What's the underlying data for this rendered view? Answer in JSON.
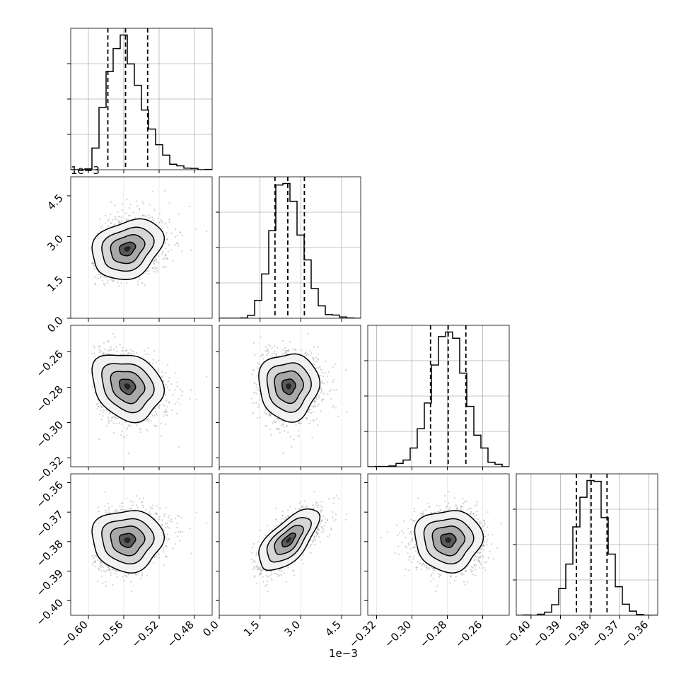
{
  "chart_data": {
    "type": "corner",
    "parameters": [
      {
        "range": [
          -0.62,
          -0.46
        ],
        "ticks": [
          "−0.60",
          "−0.56",
          "−0.52",
          "−0.48"
        ],
        "tick_values": [
          -0.6,
          -0.56,
          -0.52,
          -0.48
        ],
        "quantiles": [
          -0.578,
          -0.558,
          -0.533
        ],
        "mean": -0.556,
        "sd": 0.02,
        "skew": 0.5
      },
      {
        "range": [
          0.0,
          0.0052
        ],
        "ticks": [
          "0.0",
          "1.5",
          "3.0",
          "4.5"
        ],
        "tick_values": [
          0.0,
          0.0015,
          0.003,
          0.0045
        ],
        "offset_text": "1e−3",
        "quantiles": [
          0.00205,
          0.00252,
          0.00313
        ],
        "mean": 0.00255,
        "sd": 0.00055,
        "skew": 0.3
      },
      {
        "range": [
          -0.325,
          -0.245
        ],
        "ticks": [
          "−0.32",
          "−0.30",
          "−0.28",
          "−0.26"
        ],
        "tick_values": [
          -0.32,
          -0.3,
          -0.28,
          -0.26
        ],
        "quantiles": [
          -0.2895,
          -0.2795,
          -0.2695
        ],
        "mean": -0.2795,
        "sd": 0.0095,
        "skew": 0.0
      },
      {
        "range": [
          -0.405,
          -0.357
        ],
        "ticks": [
          "−0.40",
          "−0.39",
          "−0.38",
          "−0.37",
          "−0.36"
        ],
        "tick_values": [
          -0.4,
          -0.39,
          -0.38,
          -0.37,
          -0.36
        ],
        "quantiles": [
          -0.3846,
          -0.3796,
          -0.3742
        ],
        "mean": -0.3795,
        "sd": 0.0052,
        "skew": 0.0
      }
    ],
    "correlations": {
      "1-0": 0.25,
      "2-0": -0.2,
      "2-1": 0.0,
      "3-0": 0.0,
      "3-1": 0.65,
      "3-2": 0.0
    },
    "histogram": {
      "bins": 20,
      "style": "step",
      "quantile_line": "dashed"
    },
    "density": {
      "points_shown": "scatter",
      "contour_levels": 4
    },
    "grid": true
  },
  "labels": {
    "offset_y_row1": "1e−3",
    "offset_x_col1": "1e−3"
  },
  "colors": {
    "line": "#000000",
    "grid": "#b0b0b0",
    "scatter": "#9a9a9a"
  }
}
